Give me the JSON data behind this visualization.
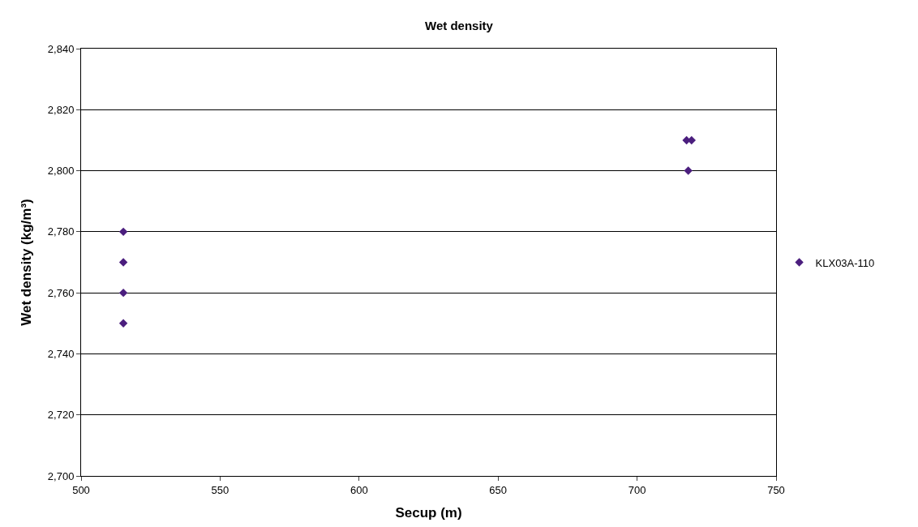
{
  "chart_data": {
    "type": "scatter",
    "title": "Wet density",
    "xlabel": "Secup (m)",
    "ylabel": "Wet density (kg/m³)",
    "series": [
      {
        "name": "KLX03A-110",
        "color": "#4b1e7e",
        "x": [
          515.2,
          515.2,
          515.2,
          515.2,
          717.8,
          719.6,
          718.4
        ],
        "values": [
          2780,
          2770,
          2760,
          2750,
          2810,
          2810,
          2800
        ]
      }
    ],
    "xlim": [
      500,
      750
    ],
    "xticks": [
      500,
      550,
      600,
      650,
      700,
      750
    ],
    "ylim": [
      2700,
      2840
    ],
    "yticks": [
      {
        "value": 2700,
        "label": "2,700"
      },
      {
        "value": 2720,
        "label": "2,720"
      },
      {
        "value": 2740,
        "label": "2,740"
      },
      {
        "value": 2760,
        "label": "2,760"
      },
      {
        "value": 2780,
        "label": "2,780"
      },
      {
        "value": 2800,
        "label": "2,800"
      },
      {
        "value": 2820,
        "label": "2,820"
      },
      {
        "value": 2840,
        "label": "2,840"
      }
    ],
    "grid": "y",
    "legend": "right",
    "marker": "diamond"
  }
}
